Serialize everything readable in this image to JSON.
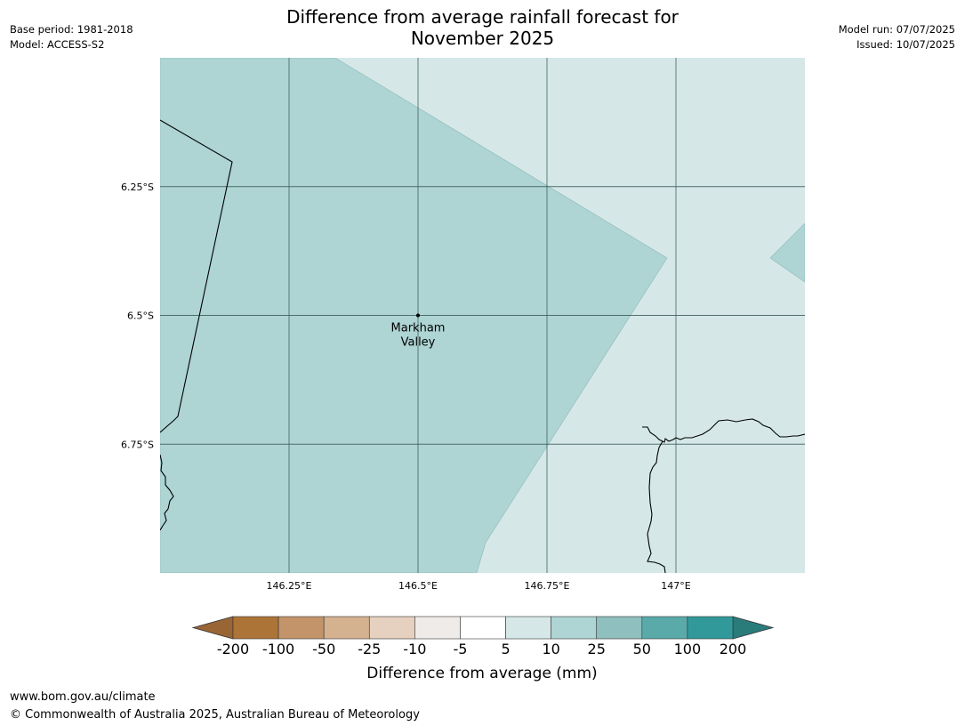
{
  "header": {
    "title_line1": "Difference from average rainfall forecast for",
    "title_line2": "November 2025",
    "base_period": "Base period: 1981-2018",
    "model": "Model: ACCESS-S2",
    "model_run": "Model run: 07/07/2025",
    "issued": "Issued: 10/07/2025"
  },
  "map": {
    "lon_range": [
      146.0,
      147.25
    ],
    "lat_range": [
      -6.0,
      -7.0
    ],
    "lon_ticks": [
      {
        "value": 146.25,
        "label": "146.25°E"
      },
      {
        "value": 146.5,
        "label": "146.5°E"
      },
      {
        "value": 146.75,
        "label": "146.75°E"
      },
      {
        "value": 147.0,
        "label": "147°E"
      }
    ],
    "lat_ticks": [
      {
        "value": -6.25,
        "label": "6.25°S"
      },
      {
        "value": -6.5,
        "label": "6.5°S"
      },
      {
        "value": -6.75,
        "label": "6.75°S"
      }
    ],
    "location": {
      "name_line1": "Markham",
      "name_line2": "Valley",
      "lon": 146.5,
      "lat": -6.5
    },
    "background_category_color": "#d5e8e7",
    "region_category_color": "#aed4d4",
    "grid_color": "#3a5a58"
  },
  "colorbar": {
    "title": "Difference from average (mm)",
    "boundaries": [
      "-200",
      "-100",
      "-50",
      "-25",
      "-10",
      "-5",
      "5",
      "10",
      "25",
      "50",
      "100",
      "200"
    ],
    "colors": [
      "#ad7438",
      "#c3946a",
      "#d4b18f",
      "#e6d0bf",
      "#efebe8",
      "#ffffff",
      "#d5e8e7",
      "#aed4d4",
      "#8fbfbe",
      "#5aaaaa",
      "#31999a"
    ],
    "under_color": "#9a6535",
    "over_color": "#2a7c7b"
  },
  "footer": {
    "url": "www.bom.gov.au/climate",
    "copyright": "© Commonwealth of Australia 2025, Australian Bureau of Meteorology"
  }
}
